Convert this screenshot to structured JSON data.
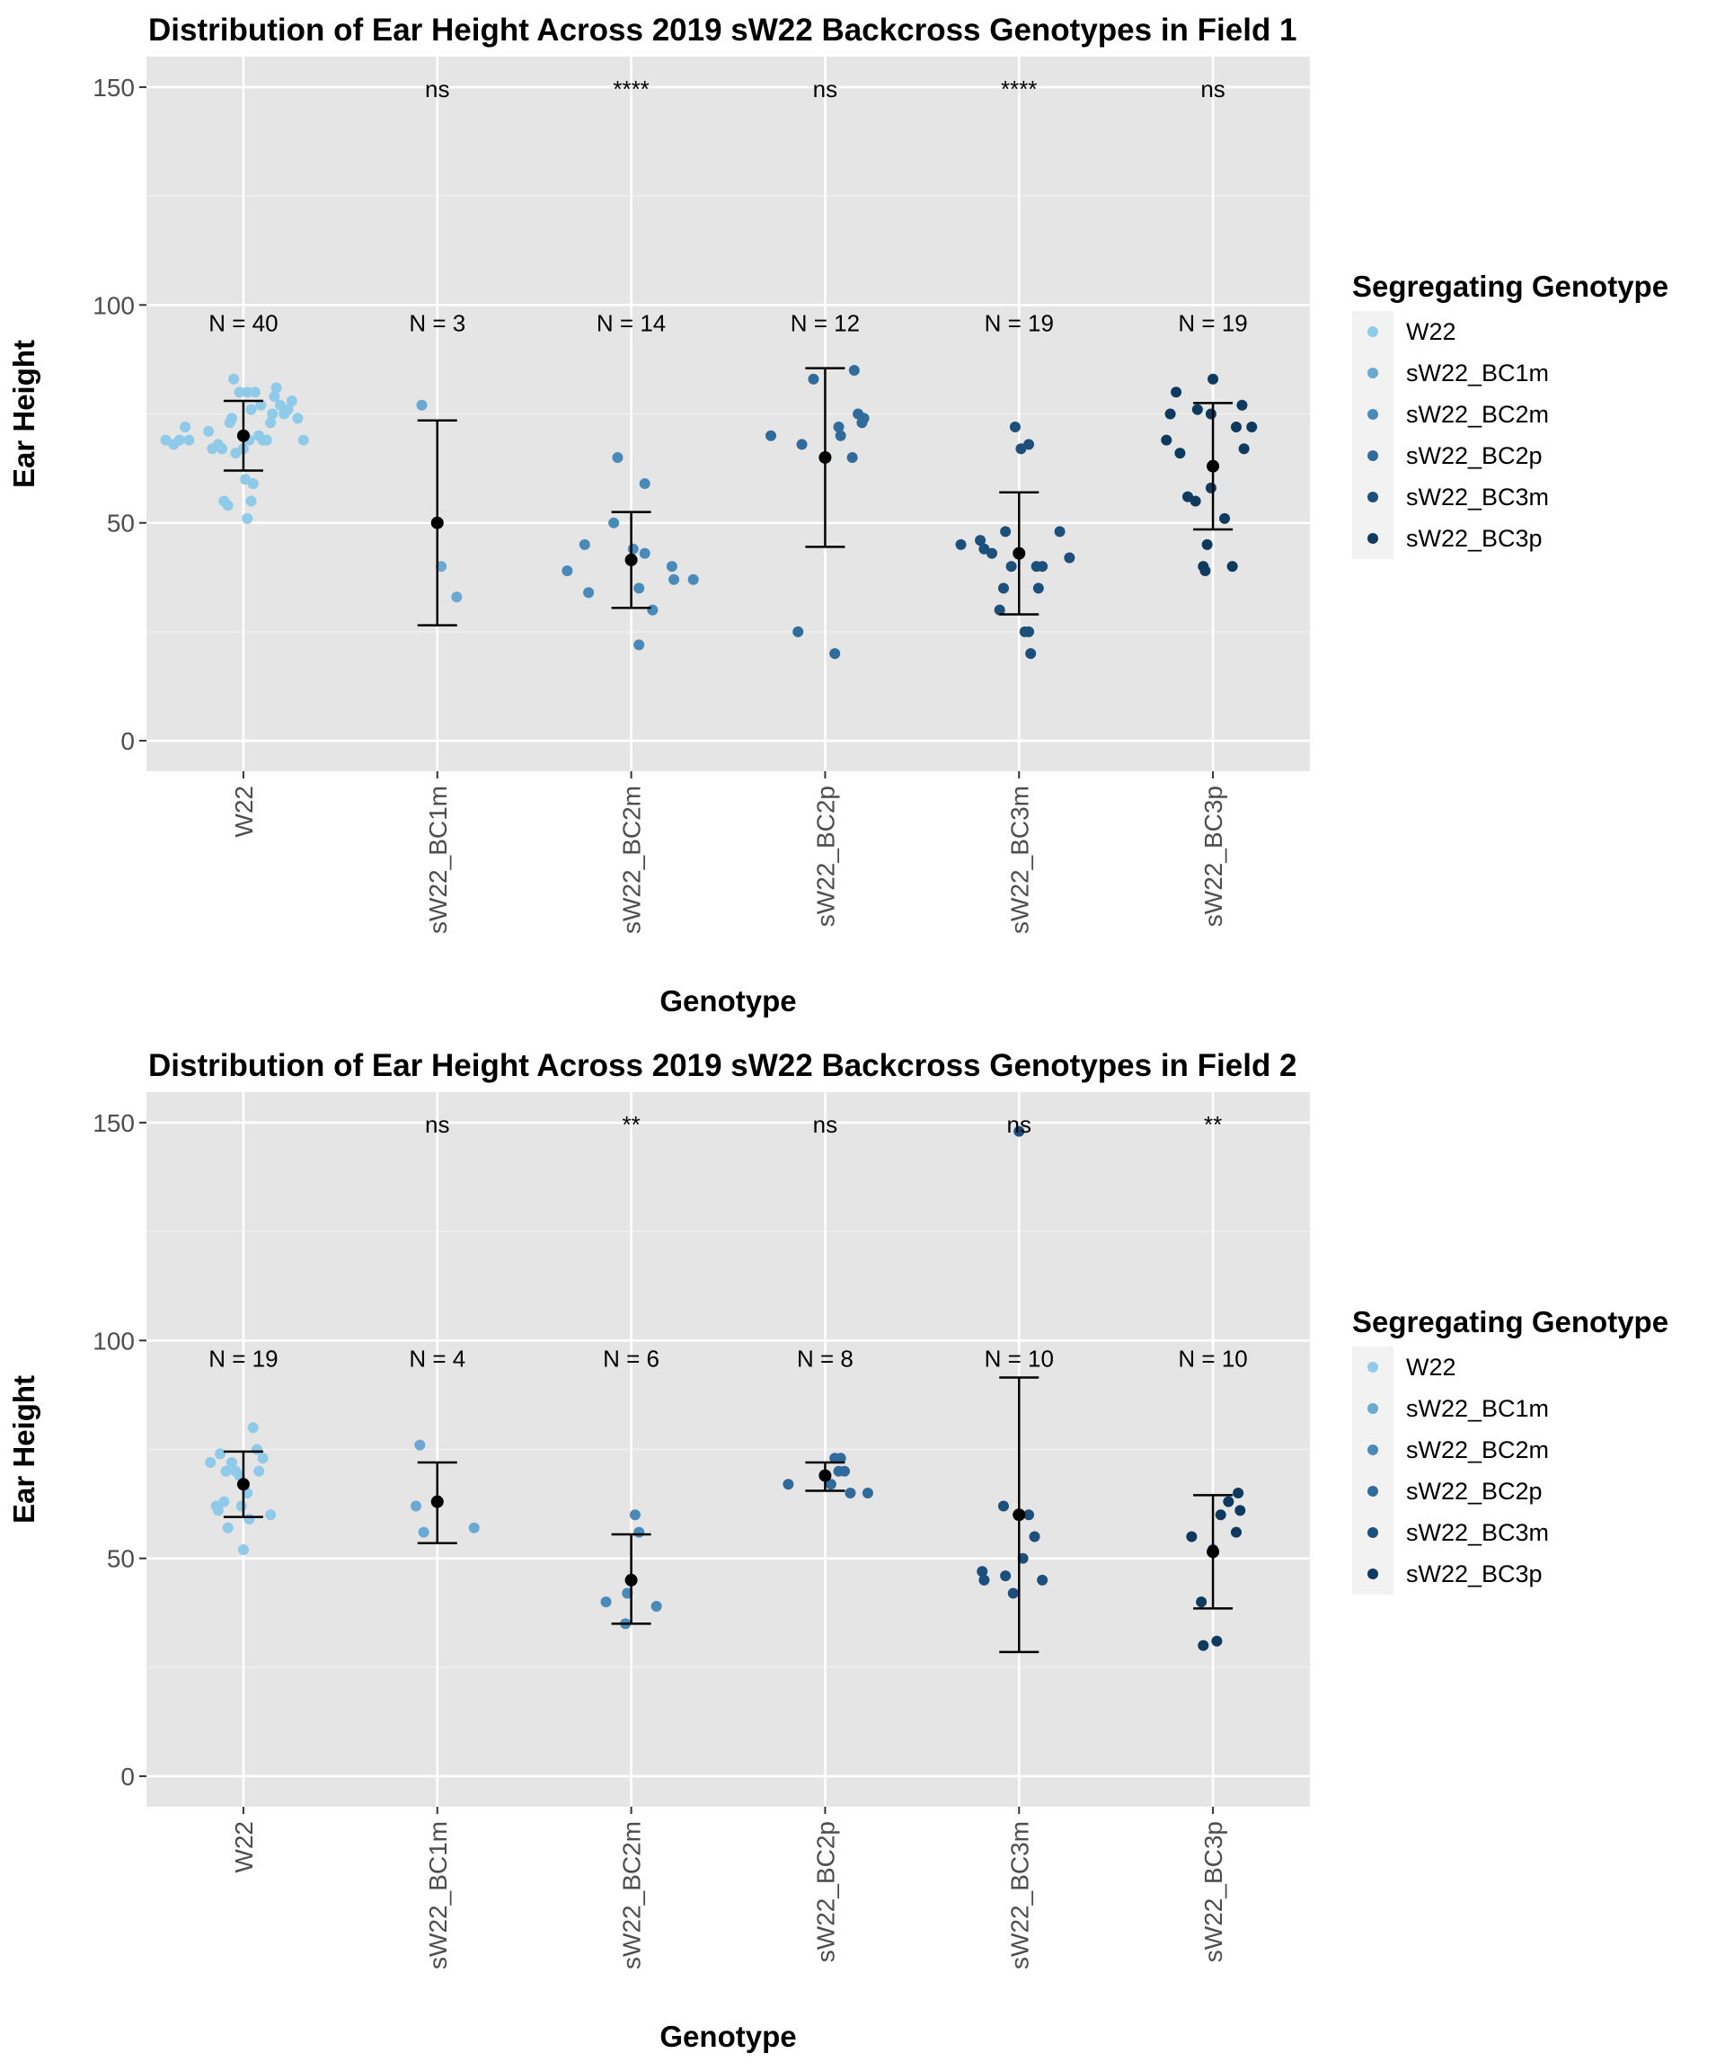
{
  "chart_data": [
    {
      "type": "scatter",
      "title": "Distribution of Ear Height Across 2019 sW22 Backcross Genotypes in Field 1",
      "xlabel": "Genotype",
      "ylabel": "Ear Height",
      "ylim": [
        -7,
        157
      ],
      "y_ticks": [
        0,
        50,
        100,
        150
      ],
      "y_tick_labels": [
        "0",
        "50",
        "100",
        "150"
      ],
      "categories": [
        "W22",
        "sW22_BC1m",
        "sW22_BC2m",
        "sW22_BC2p",
        "sW22_BC3m",
        "sW22_BC3p"
      ],
      "category_labels": [
        "W22",
        "sW22_BC1m",
        "sW22_BC2m",
        "sW22_BC2p",
        "sW22_BC3m",
        "sW22_BC3p"
      ],
      "legend_title": "Segregating Genotype",
      "legend_position": "right",
      "colors": [
        "#8fcae9",
        "#6ba9d2",
        "#4a8ab9",
        "#316b9c",
        "#1c4f7c",
        "#0f3a5f"
      ],
      "mean_color": "#000000",
      "grid": true,
      "series": [
        {
          "name": "W22",
          "n_label": "N = 40",
          "significance": "",
          "mean": 70,
          "lower": 62,
          "upper": 78,
          "points": [
            [
              -0.4,
              69
            ],
            [
              -0.36,
              68
            ],
            [
              -0.33,
              69
            ],
            [
              -0.3,
              72
            ],
            [
              -0.28,
              69
            ],
            [
              -0.18,
              71
            ],
            [
              -0.16,
              67
            ],
            [
              -0.13,
              68
            ],
            [
              -0.11,
              67
            ],
            [
              -0.1,
              55
            ],
            [
              -0.08,
              54
            ],
            [
              -0.07,
              73
            ],
            [
              -0.06,
              74
            ],
            [
              -0.05,
              83
            ],
            [
              -0.04,
              66
            ],
            [
              -0.02,
              80
            ],
            [
              0.0,
              67
            ],
            [
              0.01,
              60
            ],
            [
              0.02,
              80
            ],
            [
              0.02,
              51
            ],
            [
              0.03,
              69
            ],
            [
              0.04,
              55
            ],
            [
              0.04,
              76
            ],
            [
              0.05,
              59
            ],
            [
              0.05,
              59
            ],
            [
              0.06,
              80
            ],
            [
              0.08,
              70
            ],
            [
              0.09,
              77
            ],
            [
              0.1,
              69
            ],
            [
              0.12,
              69
            ],
            [
              0.14,
              73
            ],
            [
              0.15,
              75
            ],
            [
              0.16,
              79
            ],
            [
              0.17,
              81
            ],
            [
              0.19,
              77
            ],
            [
              0.21,
              75
            ],
            [
              0.23,
              76
            ],
            [
              0.25,
              78
            ],
            [
              0.28,
              74
            ],
            [
              0.31,
              69
            ]
          ]
        },
        {
          "name": "sW22_BC1m",
          "n_label": "N = 3",
          "significance": "ns",
          "mean": 50,
          "lower": 26.5,
          "upper": 73.5,
          "points": [
            [
              -0.08,
              77
            ],
            [
              0.02,
              40
            ],
            [
              0.1,
              33
            ]
          ]
        },
        {
          "name": "sW22_BC2m",
          "n_label": "N = 14",
          "significance": "****",
          "mean": 41.5,
          "lower": 30.5,
          "upper": 52.5,
          "points": [
            [
              -0.33,
              39
            ],
            [
              -0.24,
              45
            ],
            [
              -0.22,
              34
            ],
            [
              -0.09,
              50
            ],
            [
              -0.07,
              65
            ],
            [
              0.01,
              44
            ],
            [
              0.04,
              35
            ],
            [
              0.04,
              22
            ],
            [
              0.07,
              59
            ],
            [
              0.07,
              43
            ],
            [
              0.11,
              30
            ],
            [
              0.21,
              40
            ],
            [
              0.22,
              37
            ],
            [
              0.32,
              37
            ]
          ]
        },
        {
          "name": "sW22_BC2p",
          "n_label": "N = 12",
          "significance": "ns",
          "mean": 65,
          "lower": 44.5,
          "upper": 85.5,
          "points": [
            [
              -0.28,
              70
            ],
            [
              -0.14,
              25
            ],
            [
              -0.12,
              68
            ],
            [
              -0.06,
              83
            ],
            [
              0.05,
              20
            ],
            [
              0.07,
              72
            ],
            [
              0.08,
              70
            ],
            [
              0.14,
              65
            ],
            [
              0.15,
              85
            ],
            [
              0.17,
              75
            ],
            [
              0.19,
              73
            ],
            [
              0.2,
              74
            ]
          ]
        },
        {
          "name": "sW22_BC3m",
          "n_label": "N = 19",
          "significance": "****",
          "mean": 43,
          "lower": 29,
          "upper": 57,
          "points": [
            [
              -0.3,
              45
            ],
            [
              -0.2,
              46
            ],
            [
              -0.18,
              44
            ],
            [
              -0.14,
              43
            ],
            [
              -0.1,
              30
            ],
            [
              -0.08,
              35
            ],
            [
              -0.07,
              48
            ],
            [
              -0.04,
              40
            ],
            [
              -0.02,
              72
            ],
            [
              0.01,
              67
            ],
            [
              0.03,
              25
            ],
            [
              0.05,
              25
            ],
            [
              0.05,
              68
            ],
            [
              0.06,
              20
            ],
            [
              0.09,
              40
            ],
            [
              0.1,
              35
            ],
            [
              0.12,
              40
            ],
            [
              0.21,
              48
            ],
            [
              0.26,
              42
            ]
          ]
        },
        {
          "name": "sW22_BC3p",
          "n_label": "N = 19",
          "significance": "ns",
          "mean": 63,
          "lower": 48.5,
          "upper": 77.5,
          "points": [
            [
              -0.24,
              69
            ],
            [
              -0.22,
              75
            ],
            [
              -0.19,
              80
            ],
            [
              -0.17,
              66
            ],
            [
              -0.13,
              56
            ],
            [
              -0.09,
              55
            ],
            [
              -0.08,
              76
            ],
            [
              -0.05,
              40
            ],
            [
              -0.04,
              39
            ],
            [
              -0.03,
              45
            ],
            [
              -0.01,
              58
            ],
            [
              -0.01,
              75
            ],
            [
              0.0,
              83
            ],
            [
              0.06,
              51
            ],
            [
              0.1,
              40
            ],
            [
              0.12,
              72
            ],
            [
              0.15,
              77
            ],
            [
              0.16,
              67
            ],
            [
              0.2,
              72
            ]
          ]
        }
      ]
    },
    {
      "type": "scatter",
      "title": "Distribution of Ear Height Across 2019 sW22 Backcross Genotypes in Field 2",
      "xlabel": "Genotype",
      "ylabel": "Ear Height",
      "ylim": [
        -7,
        157
      ],
      "y_ticks": [
        0,
        50,
        100,
        150
      ],
      "y_tick_labels": [
        "0",
        "50",
        "100",
        "150"
      ],
      "categories": [
        "W22",
        "sW22_BC1m",
        "sW22_BC2m",
        "sW22_BC2p",
        "sW22_BC3m",
        "sW22_BC3p"
      ],
      "category_labels": [
        "W22",
        "sW22_BC1m",
        "sW22_BC2m",
        "sW22_BC2p",
        "sW22_BC3m",
        "sW22_BC3p"
      ],
      "legend_title": "Segregating Genotype",
      "legend_position": "right",
      "colors": [
        "#8fcae9",
        "#6ba9d2",
        "#4a8ab9",
        "#316b9c",
        "#1c4f7c",
        "#0f3a5f"
      ],
      "mean_color": "#000000",
      "grid": true,
      "series": [
        {
          "name": "W22",
          "n_label": "N = 19",
          "significance": "",
          "mean": 67,
          "lower": 59.5,
          "upper": 74.5,
          "points": [
            [
              -0.17,
              72
            ],
            [
              -0.14,
              62
            ],
            [
              -0.13,
              61
            ],
            [
              -0.12,
              74
            ],
            [
              -0.1,
              63
            ],
            [
              -0.09,
              70
            ],
            [
              -0.08,
              57
            ],
            [
              -0.06,
              72
            ],
            [
              -0.04,
              70
            ],
            [
              -0.02,
              69
            ],
            [
              -0.01,
              62
            ],
            [
              0.0,
              52
            ],
            [
              0.02,
              65
            ],
            [
              0.03,
              59
            ],
            [
              0.05,
              80
            ],
            [
              0.07,
              75
            ],
            [
              0.08,
              70
            ],
            [
              0.1,
              73
            ],
            [
              0.14,
              60
            ]
          ]
        },
        {
          "name": "sW22_BC1m",
          "n_label": "N = 4",
          "significance": "ns",
          "mean": 63,
          "lower": 53.5,
          "upper": 72,
          "points": [
            [
              -0.11,
              62
            ],
            [
              -0.09,
              76
            ],
            [
              -0.07,
              56
            ],
            [
              0.19,
              57
            ]
          ]
        },
        {
          "name": "sW22_BC2m",
          "n_label": "N = 6",
          "significance": "**",
          "mean": 45,
          "lower": 35,
          "upper": 55.5,
          "points": [
            [
              -0.13,
              40
            ],
            [
              -0.03,
              35
            ],
            [
              -0.02,
              42
            ],
            [
              0.02,
              60
            ],
            [
              0.04,
              56
            ],
            [
              0.13,
              39
            ]
          ]
        },
        {
          "name": "sW22_BC2p",
          "n_label": "N = 8",
          "significance": "ns",
          "mean": 69,
          "lower": 65.5,
          "upper": 72,
          "points": [
            [
              -0.19,
              67
            ],
            [
              0.03,
              67
            ],
            [
              0.05,
              73
            ],
            [
              0.07,
              70
            ],
            [
              0.08,
              73
            ],
            [
              0.1,
              70
            ],
            [
              0.13,
              65
            ],
            [
              0.22,
              65
            ]
          ]
        },
        {
          "name": "sW22_BC3m",
          "n_label": "N = 10",
          "significance": "ns",
          "mean": 60,
          "lower": 28.5,
          "upper": 91.5,
          "points": [
            [
              -0.19,
              47
            ],
            [
              -0.18,
              45
            ],
            [
              -0.08,
              62
            ],
            [
              -0.07,
              46
            ],
            [
              -0.03,
              42
            ],
            [
              0.0,
              148
            ],
            [
              0.02,
              50
            ],
            [
              0.05,
              60
            ],
            [
              0.08,
              55
            ],
            [
              0.12,
              45
            ]
          ]
        },
        {
          "name": "sW22_BC3p",
          "n_label": "N = 10",
          "significance": "**",
          "mean": 51.5,
          "lower": 38.5,
          "upper": 64.5,
          "points": [
            [
              -0.11,
              55
            ],
            [
              -0.06,
              40
            ],
            [
              -0.05,
              30
            ],
            [
              0.0,
              52
            ],
            [
              0.02,
              31
            ],
            [
              0.04,
              60
            ],
            [
              0.08,
              63
            ],
            [
              0.12,
              56
            ],
            [
              0.13,
              65
            ],
            [
              0.14,
              61
            ]
          ]
        }
      ]
    }
  ]
}
